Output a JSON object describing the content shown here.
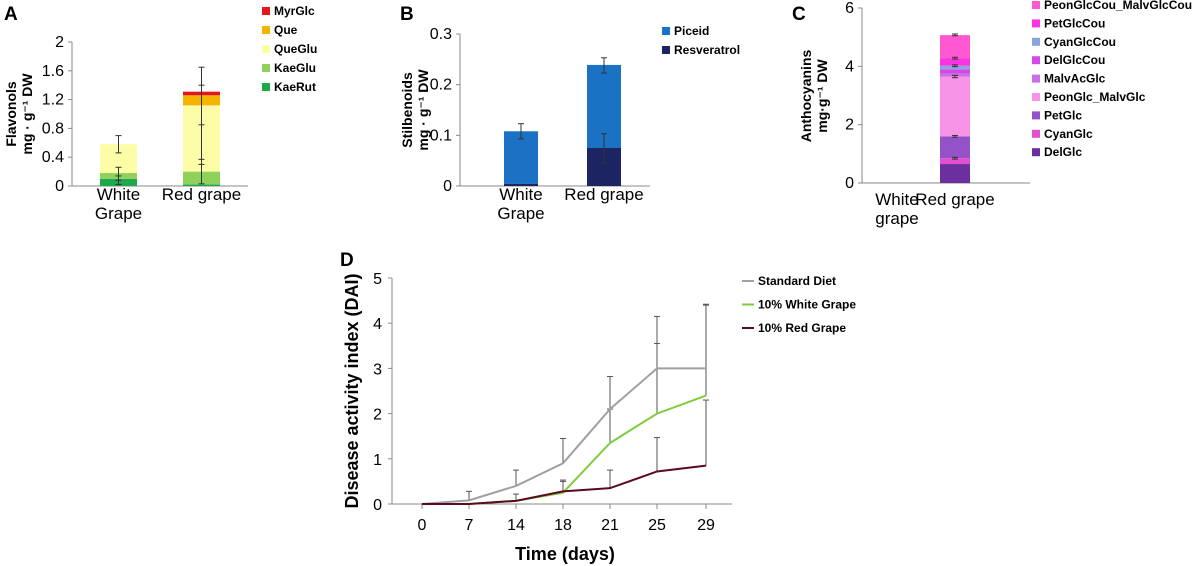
{
  "chart_data": [
    {
      "panel": "A",
      "type": "stacked-bar",
      "ylabel_line1": "Flavonols",
      "ylabel_line2": "mg · g⁻¹ DW",
      "ylim": [
        0,
        2
      ],
      "yticks": [
        "0",
        "0.4",
        "0.8",
        "1.2",
        "1.6",
        "2"
      ],
      "categories": [
        [
          "White",
          "Grape"
        ],
        [
          "Red grape"
        ]
      ],
      "legend": [
        "MyrGlc",
        "Que",
        "QueGlu",
        "KaeGlu",
        "KaeRut"
      ],
      "series": [
        {
          "name": "KaeRut",
          "color": "#1ea84c",
          "values": [
            0.1,
            0.02
          ]
        },
        {
          "name": "KaeGlu",
          "color": "#8fd15a",
          "values": [
            0.08,
            0.18
          ]
        },
        {
          "name": "QueGlu",
          "color": "#fdfda8",
          "values": [
            0.4,
            0.92
          ]
        },
        {
          "name": "Que",
          "color": "#f4b400",
          "values": [
            0.0,
            0.14
          ]
        },
        {
          "name": "MyrGlc",
          "color": "#e5161b",
          "values": [
            0.0,
            0.05
          ]
        }
      ],
      "errors": [
        {
          "cat": 0,
          "center": 0.58,
          "err": 0.12
        },
        {
          "cat": 0,
          "center": 0.17,
          "err": 0.09
        },
        {
          "cat": 0,
          "center": 0.08,
          "err": 0.06
        },
        {
          "cat": 1,
          "center": 1.25,
          "err": 0.4
        },
        {
          "cat": 1,
          "center": 0.85,
          "err": 0.55
        },
        {
          "cat": 1,
          "center": 0.2,
          "err": 0.17
        }
      ]
    },
    {
      "panel": "B",
      "type": "stacked-bar",
      "ylabel_line1": "Stilbenoids",
      "ylabel_line2": "mg · g⁻¹ DW",
      "ylim": [
        0,
        0.3
      ],
      "yticks": [
        "0",
        "0.1",
        "0.2",
        "0.3"
      ],
      "categories": [
        [
          "White",
          "Grape"
        ],
        [
          "Red grape"
        ]
      ],
      "legend": [
        "Piceid",
        "Resveratrol"
      ],
      "series": [
        {
          "name": "Resveratrol",
          "color": "#1c2462",
          "values": [
            0.004,
            0.075
          ]
        },
        {
          "name": "Piceid",
          "color": "#1b72c4",
          "values": [
            0.104,
            0.164
          ]
        }
      ],
      "errors": [
        {
          "cat": 0,
          "center": 0.108,
          "err": 0.015
        },
        {
          "cat": 1,
          "center": 0.238,
          "err": 0.015
        },
        {
          "cat": 1,
          "center": 0.074,
          "err": 0.029
        }
      ]
    },
    {
      "panel": "C",
      "type": "stacked-bar",
      "ylabel_line1": "Anthocyanins",
      "ylabel_line2": "mg·g⁻¹ DW",
      "ylim": [
        0,
        6
      ],
      "yticks": [
        "0",
        "2",
        "4",
        "6"
      ],
      "categories": [
        [
          "White",
          "grape"
        ],
        [
          "Red grape"
        ]
      ],
      "legend": [
        "PeonGlcCou_MalvGlcCou",
        "PetGlcCou",
        "CyanGlcCou",
        "DelGlcCou",
        "MalvAcGlc",
        "PeonGlc_MalvGlc",
        "PetGlc",
        "CyanGlc",
        "DelGlc"
      ],
      "series": [
        {
          "name": "DelGlc",
          "color": "#6b2fa0",
          "values": [
            0,
            0.65
          ]
        },
        {
          "name": "CyanGlc",
          "color": "#e34fd0",
          "values": [
            0,
            0.2
          ]
        },
        {
          "name": "PetGlc",
          "color": "#9352c8",
          "values": [
            0,
            0.75
          ]
        },
        {
          "name": "PeonGlc_MalvGlc",
          "color": "#f794e8",
          "values": [
            0,
            2.05
          ]
        },
        {
          "name": "MalvAcGlc",
          "color": "#c870e6",
          "values": [
            0,
            0.1
          ]
        },
        {
          "name": "DelGlcCou",
          "color": "#d548e8",
          "values": [
            0,
            0.15
          ]
        },
        {
          "name": "CyanGlcCou",
          "color": "#8aa5de",
          "values": [
            0,
            0.12
          ]
        },
        {
          "name": "PetGlcCou",
          "color": "#fb33e2",
          "values": [
            0,
            0.25
          ]
        },
        {
          "name": "PeonGlcCou_MalvGlcCou",
          "color": "#ff58d0",
          "values": [
            0,
            0.8
          ]
        }
      ],
      "errors": [
        {
          "cat": 1,
          "center": 5.08,
          "err": 0.03
        },
        {
          "cat": 1,
          "center": 4.28,
          "err": 0.03
        },
        {
          "cat": 1,
          "center": 4.02,
          "err": 0.03
        },
        {
          "cat": 1,
          "center": 3.65,
          "err": 0.04
        },
        {
          "cat": 1,
          "center": 1.6,
          "err": 0.03
        },
        {
          "cat": 1,
          "center": 0.85,
          "err": 0.03
        }
      ]
    },
    {
      "panel": "D",
      "type": "line",
      "xlabel": "Time (days)",
      "ylabel": "Disease activity index (DAI)",
      "x": [
        "0",
        "7",
        "14",
        "18",
        "21",
        "25",
        "29"
      ],
      "ylim": [
        0,
        5
      ],
      "yticks": [
        "0",
        "1",
        "2",
        "3",
        "4",
        "5"
      ],
      "series": [
        {
          "name": "Standard Diet",
          "color": "#a0a0a0",
          "values": [
            0,
            0.08,
            0.4,
            0.9,
            2.1,
            3.0,
            3.0
          ],
          "errors": [
            0,
            0.2,
            0.35,
            0.55,
            0.72,
            1.15,
            1.42
          ]
        },
        {
          "name": "10% White Grape",
          "color": "#7fcc3b",
          "values": [
            0,
            0,
            0.07,
            0.25,
            1.35,
            2.0,
            2.4
          ],
          "errors": [
            0,
            0,
            0.15,
            0.25,
            0.75,
            1.55,
            2.0
          ]
        },
        {
          "name": "10% Red Grape",
          "color": "#5a0a1e",
          "values": [
            0,
            0,
            0.07,
            0.28,
            0.35,
            0.72,
            0.85
          ],
          "errors": [
            0,
            0,
            0,
            0.25,
            0.4,
            0.75,
            1.45
          ]
        }
      ]
    }
  ]
}
